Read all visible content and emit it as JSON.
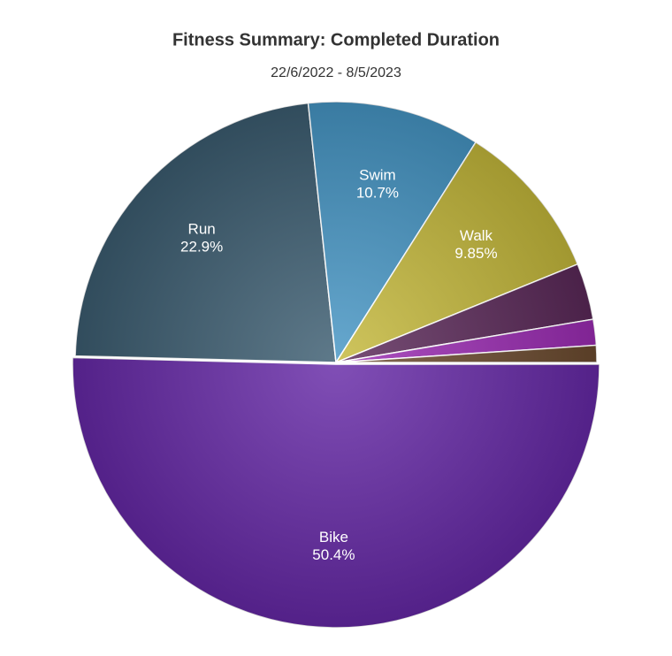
{
  "chart_data": {
    "type": "pie",
    "title": "Fitness Summary: Completed Duration",
    "subtitle": "22/6/2022 - 8/5/2023",
    "categories": [
      "Bike",
      "Run",
      "Swim",
      "Walk",
      null,
      null,
      null
    ],
    "values": [
      50.4,
      22.9,
      10.7,
      9.85,
      3.5,
      1.6,
      1.05
    ],
    "value_labels": [
      "50.4%",
      "22.9%",
      "10.7%",
      "9.85%",
      null,
      null,
      null
    ],
    "colors": [
      "#6528a6",
      "#3b5c70",
      "#4595c4",
      "#c4b83a",
      "#5a2858",
      "#9b2bb3",
      "#6b4a2e"
    ]
  }
}
